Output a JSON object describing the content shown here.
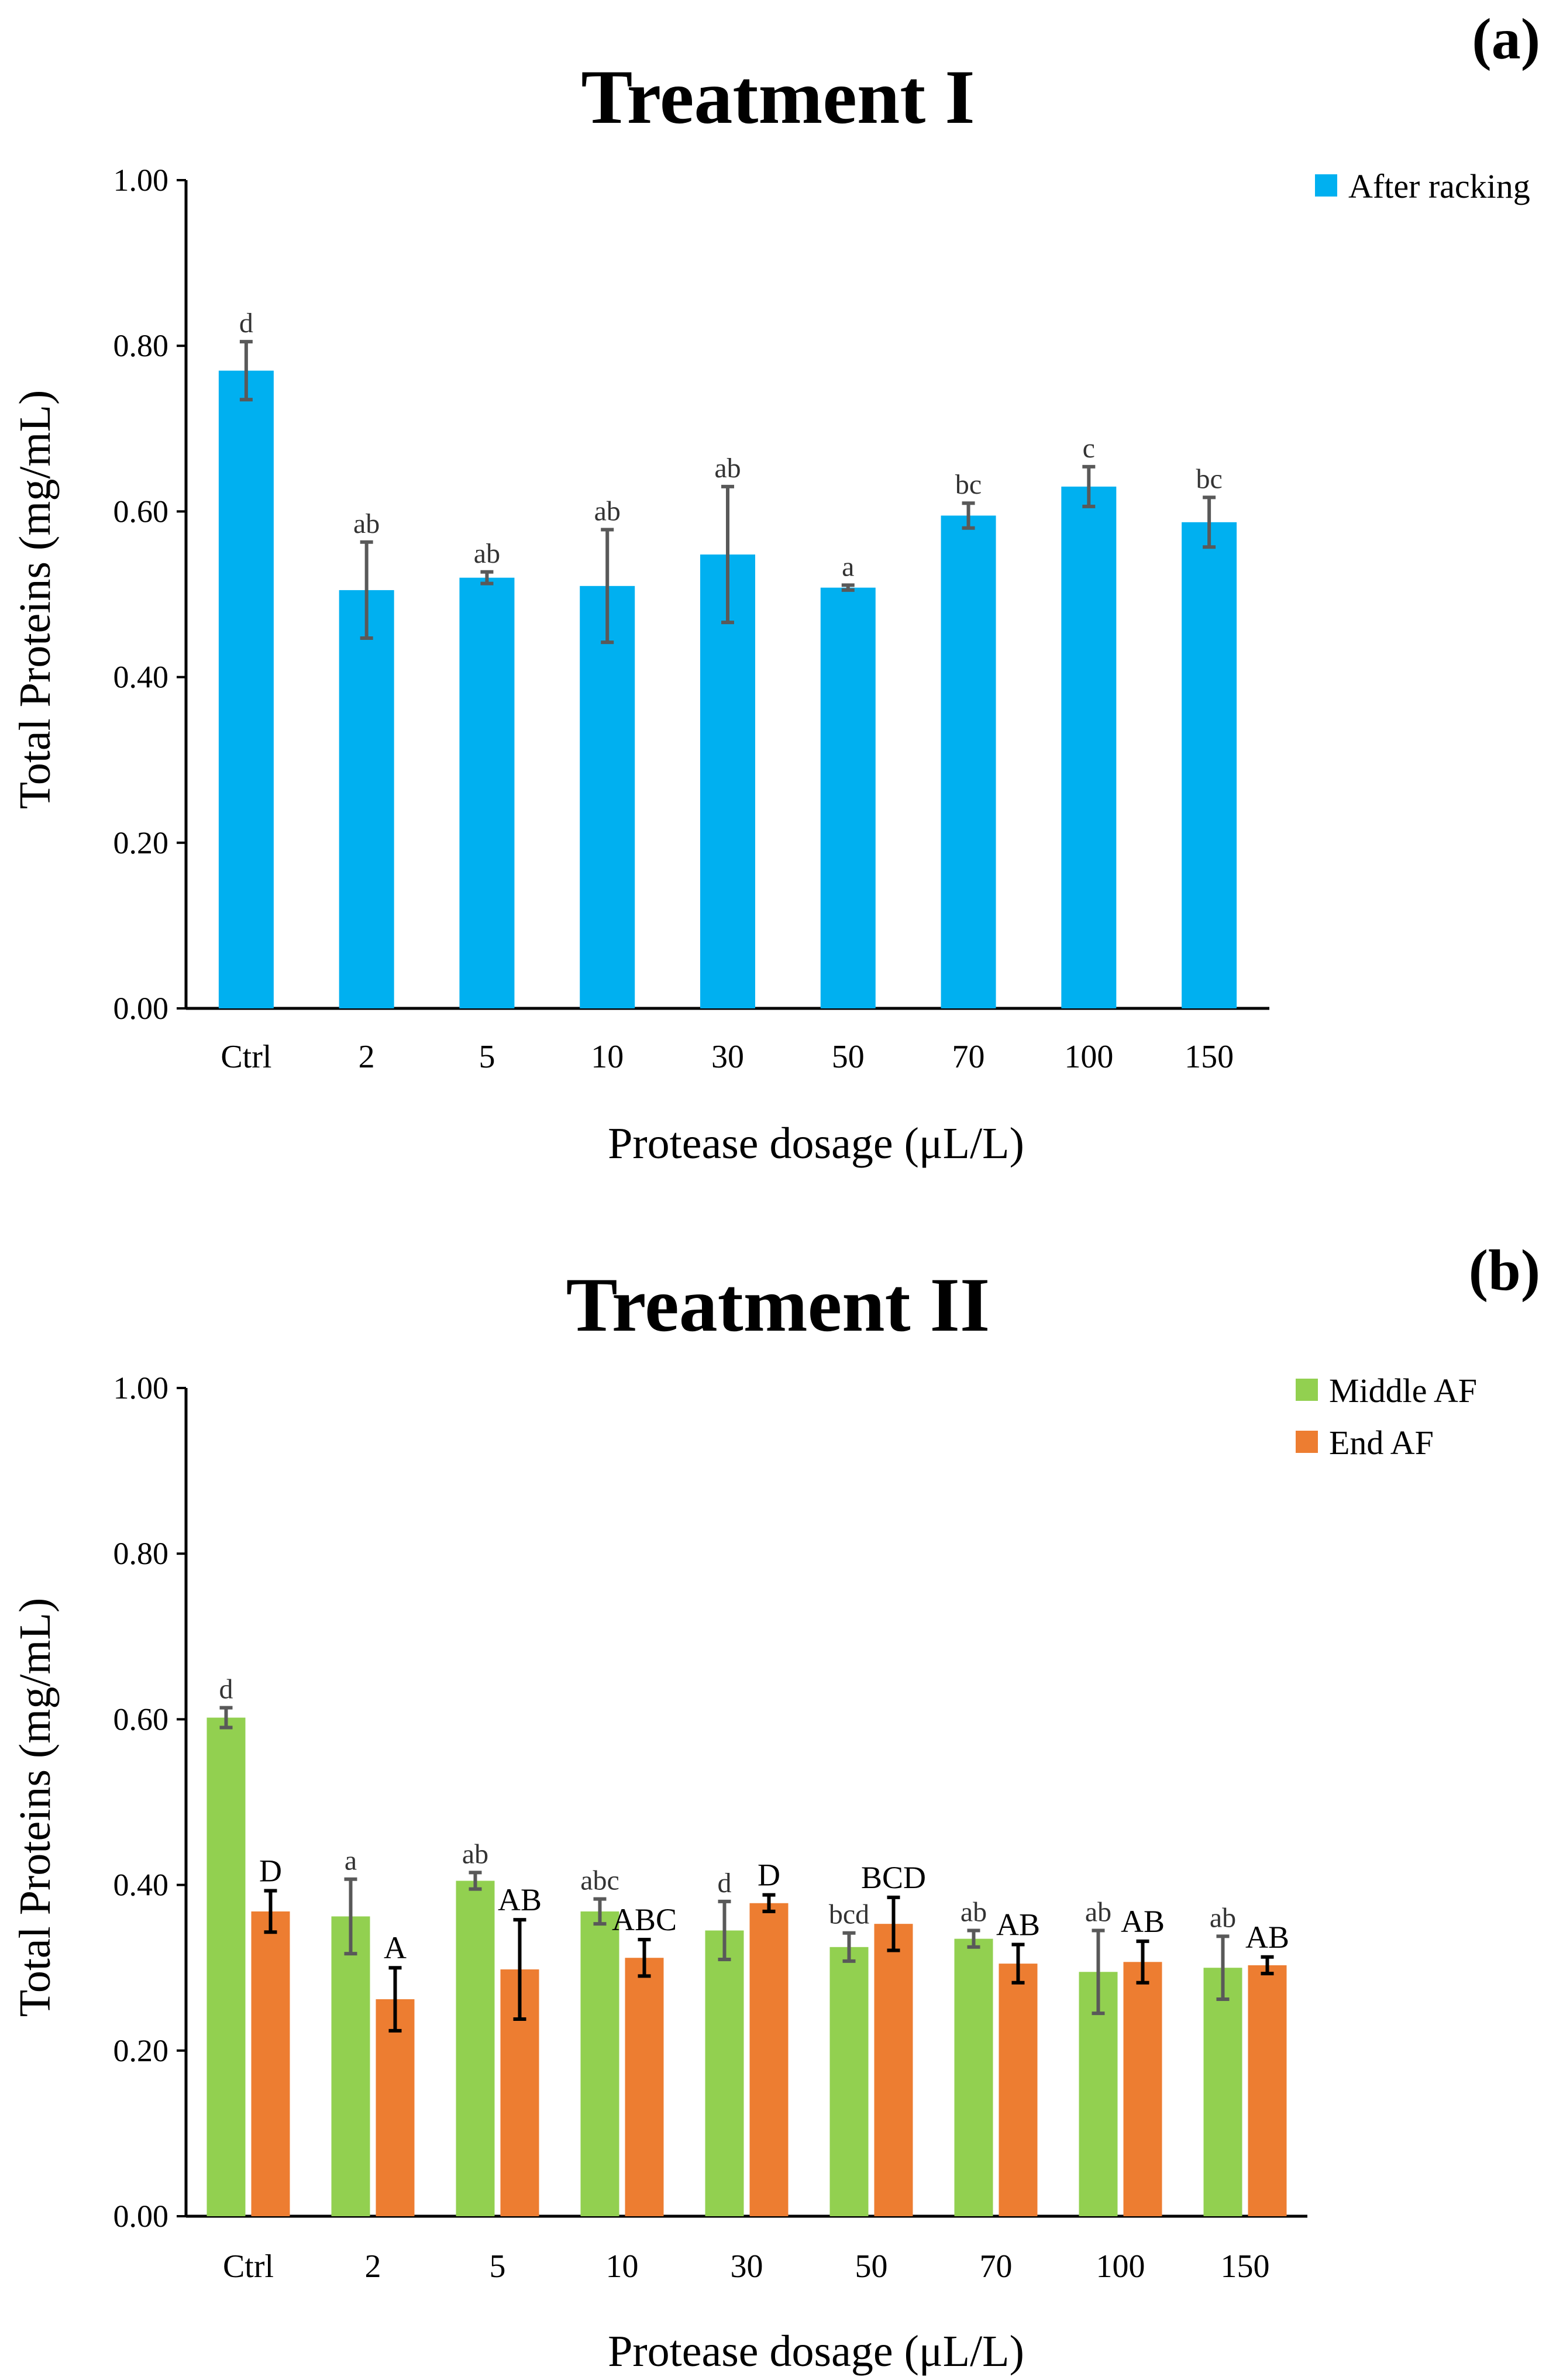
{
  "chart_data": [
    {
      "type": "bar",
      "panel_label": "(a)",
      "title": "Treatment I",
      "xlabel": "Protease dosage (μL/L)",
      "ylabel": "Total Proteins (mg/mL)",
      "ylim": [
        0,
        1.0
      ],
      "yticks": [
        "0.00",
        "0.20",
        "0.40",
        "0.60",
        "0.80",
        "1.00"
      ],
      "grid": false,
      "legend_position": "top-right",
      "categories": [
        "Ctrl",
        "2",
        "5",
        "10",
        "30",
        "50",
        "70",
        "100",
        "150"
      ],
      "series": [
        {
          "name": "After racking",
          "color": "#00B0F0",
          "error_color": "#595959",
          "values": [
            0.77,
            0.505,
            0.52,
            0.51,
            0.548,
            0.508,
            0.595,
            0.63,
            0.587
          ],
          "errors": [
            0.035,
            0.058,
            0.007,
            0.068,
            0.082,
            0.003,
            0.015,
            0.024,
            0.03
          ],
          "letters": [
            "d",
            "ab",
            "ab",
            "ab",
            "ab",
            "a",
            "bc",
            "c",
            "bc"
          ]
        }
      ]
    },
    {
      "type": "bar",
      "panel_label": "(b)",
      "title": "Treatment II",
      "xlabel": "Protease dosage (μL/L)",
      "ylabel": "Total Proteins (mg/mL)",
      "ylim": [
        0,
        1.0
      ],
      "yticks": [
        "0.00",
        "0.20",
        "0.40",
        "0.60",
        "0.80",
        "1.00"
      ],
      "grid": false,
      "legend_position": "top-right",
      "categories": [
        "Ctrl",
        "2",
        "5",
        "10",
        "30",
        "50",
        "70",
        "100",
        "150"
      ],
      "series": [
        {
          "name": "Middle AF",
          "color": "#92D050",
          "error_color": "#595959",
          "values": [
            0.602,
            0.362,
            0.405,
            0.368,
            0.345,
            0.325,
            0.335,
            0.295,
            0.3
          ],
          "errors": [
            0.012,
            0.045,
            0.01,
            0.015,
            0.035,
            0.017,
            0.01,
            0.05,
            0.038
          ],
          "letters": [
            "d",
            "a",
            "ab",
            "abc",
            "d",
            "bcd",
            "ab",
            "ab",
            "ab"
          ]
        },
        {
          "name": "End AF",
          "color": "#ED7D31",
          "error_color": "#000000",
          "values": [
            0.368,
            0.262,
            0.298,
            0.312,
            0.378,
            0.353,
            0.305,
            0.307,
            0.303
          ],
          "errors": [
            0.025,
            0.038,
            0.06,
            0.022,
            0.01,
            0.032,
            0.023,
            0.025,
            0.01
          ],
          "letters": [
            "D",
            "A",
            "AB",
            "ABC",
            "D",
            "BCD",
            "AB",
            "AB",
            "AB"
          ]
        }
      ]
    }
  ]
}
